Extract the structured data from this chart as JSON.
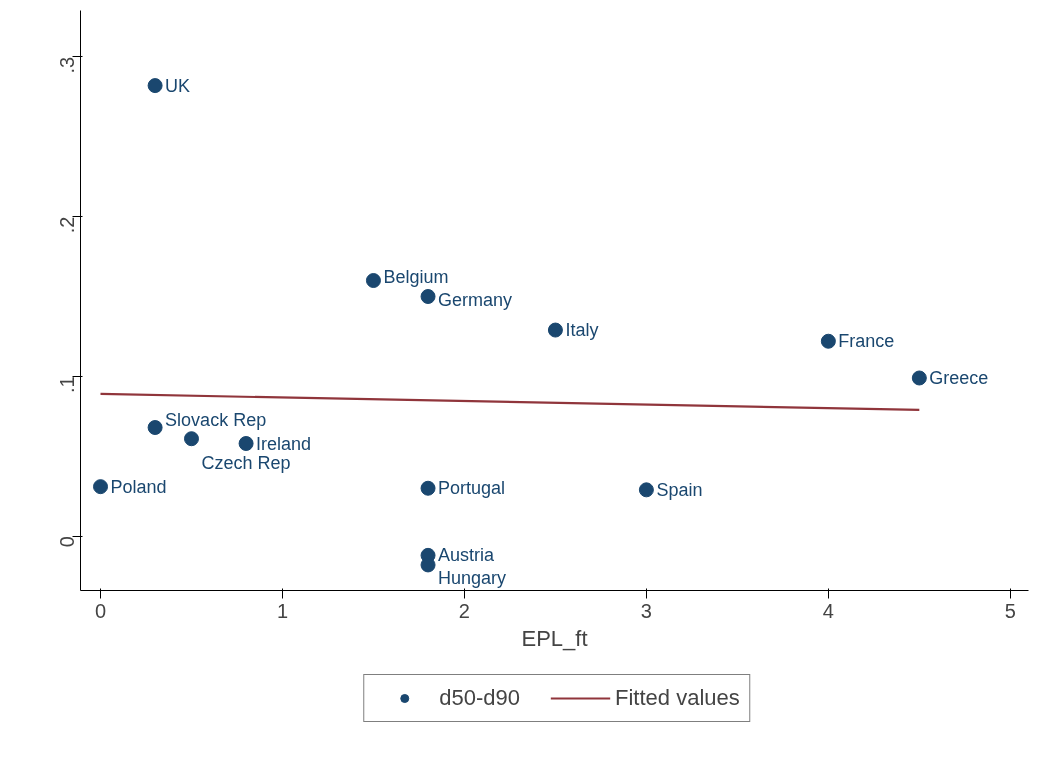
{
  "chart_data": {
    "type": "scatter",
    "xlabel": "EPL_ft",
    "xlim": [
      -0.11,
      5.1
    ],
    "ylim": [
      -0.034,
      0.329
    ],
    "xticks": [
      0,
      1,
      2,
      3,
      4,
      5
    ],
    "yticks": [
      {
        "value": 0,
        "label": "0"
      },
      {
        "value": 0.1,
        "label": ".1"
      },
      {
        "value": 0.2,
        "label": ".2"
      },
      {
        "value": 0.3,
        "label": ".3"
      }
    ],
    "grid": false,
    "legend": "bottom",
    "series": [
      {
        "name": "d50-d90",
        "marker": "circle",
        "color": "#1a476f",
        "x": [
          0.3,
          1.5,
          1.8,
          2.5,
          4.0,
          4.5,
          0.3,
          0.5,
          0.8,
          0,
          1.8,
          3.0,
          1.8,
          1.8
        ],
        "values": [
          0.282,
          0.16,
          0.15,
          0.129,
          0.122,
          0.099,
          0.068,
          0.061,
          0.058,
          0.031,
          0.03,
          0.029,
          -0.012,
          -0.018
        ]
      },
      {
        "name": "Fitted values",
        "type": "line",
        "color": "#90353b",
        "x": [
          0,
          4.5
        ],
        "values": [
          0.089,
          0.079
        ]
      }
    ],
    "annotations": [
      {
        "text": "UK",
        "x": 0.3,
        "y": 0.282
      },
      {
        "text": "Belgium",
        "x": 1.5,
        "y": 0.16
      },
      {
        "text": "Germany",
        "x": 1.8,
        "y": 0.15
      },
      {
        "text": "Italy",
        "x": 2.5,
        "y": 0.129
      },
      {
        "text": "France",
        "x": 4.0,
        "y": 0.122
      },
      {
        "text": "Greece",
        "x": 4.5,
        "y": 0.099
      },
      {
        "text": "Slovack Rep",
        "x": 0.3,
        "y": 0.068
      },
      {
        "text": "Czech Rep",
        "x": 0.5,
        "y": 0.061
      },
      {
        "text": "Ireland",
        "x": 0.8,
        "y": 0.058
      },
      {
        "text": "Poland",
        "x": 0,
        "y": 0.031
      },
      {
        "text": "Portugal",
        "x": 1.8,
        "y": 0.03
      },
      {
        "text": "Spain",
        "x": 3.0,
        "y": 0.029
      },
      {
        "text": "Austria",
        "x": 1.8,
        "y": -0.012
      },
      {
        "text": "Hungary",
        "x": 1.8,
        "y": -0.018
      }
    ]
  }
}
